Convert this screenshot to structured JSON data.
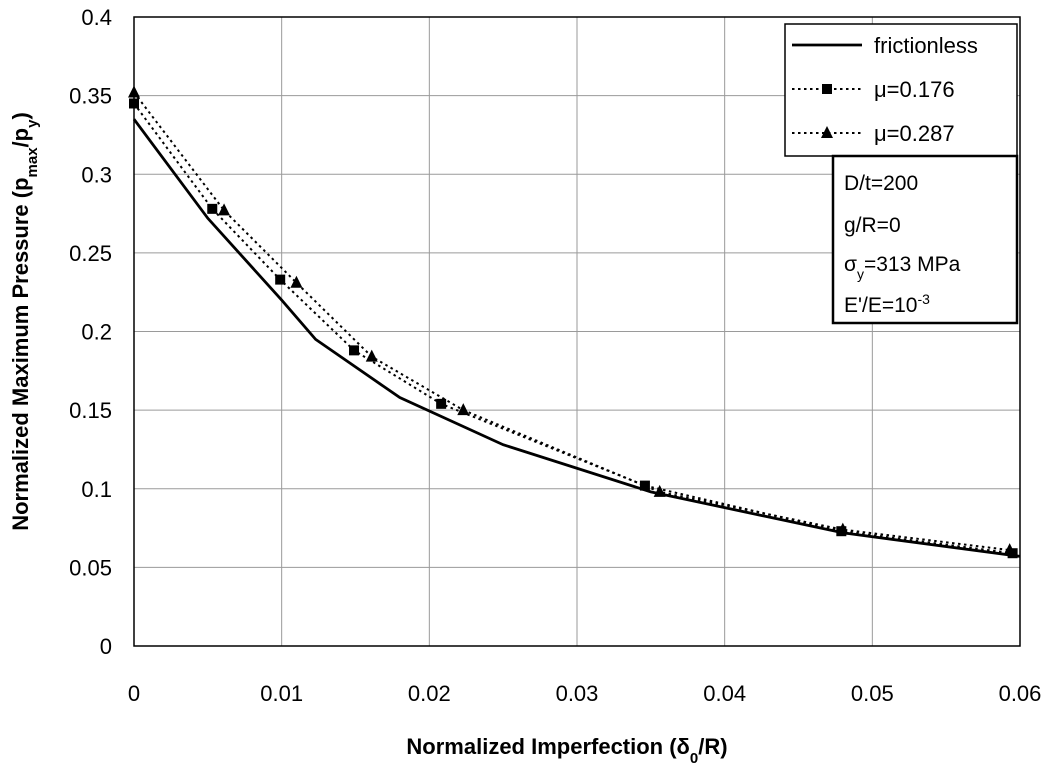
{
  "chart_data": {
    "type": "line",
    "xlabel": "Normalized Imperfection (δ0/R)",
    "ylabel": "Normalized Maximum Pressure (pmax/py)",
    "xlim": [
      0,
      0.06
    ],
    "ylim": [
      0,
      0.4
    ],
    "xticks": [
      "0",
      "0.01",
      "0.02",
      "0.03",
      "0.04",
      "0.05",
      "0.06"
    ],
    "yticks": [
      "0",
      "0.05",
      "0.1",
      "0.15",
      "0.2",
      "0.25",
      "0.3",
      "0.35",
      "0.4"
    ],
    "grid": true,
    "legend_position": "top-right",
    "series": [
      {
        "name": "frictionless",
        "style": "solid",
        "marker": "none",
        "x": [
          0,
          0.005,
          0.01,
          0.0123,
          0.018,
          0.025,
          0.035,
          0.048,
          0.06
        ],
        "y": [
          0.335,
          0.272,
          0.22,
          0.195,
          0.158,
          0.128,
          0.098,
          0.072,
          0.057
        ]
      },
      {
        "name": "μ=0.176",
        "style": "dotted",
        "marker": "square",
        "x": [
          0,
          0.0053,
          0.0099,
          0.0149,
          0.0208,
          0.0346,
          0.0479,
          0.0595
        ],
        "y": [
          0.345,
          0.278,
          0.233,
          0.188,
          0.154,
          0.102,
          0.073,
          0.059
        ]
      },
      {
        "name": "μ=0.287",
        "style": "dotted",
        "marker": "triangle",
        "x": [
          0,
          0.0061,
          0.011,
          0.0161,
          0.0223,
          0.0356,
          0.048,
          0.0593
        ],
        "y": [
          0.352,
          0.277,
          0.231,
          0.184,
          0.15,
          0.098,
          0.074,
          0.061
        ]
      }
    ],
    "annotation": {
      "lines": [
        {
          "base": "D/t=200",
          "sub": "",
          "sup": "",
          "tail": ""
        },
        {
          "base": "g/R=0",
          "sub": "",
          "sup": "",
          "tail": ""
        },
        {
          "base": "σ",
          "sub": "y",
          "sup": "",
          "tail": "=313 MPa"
        },
        {
          "base": "E'/E=10",
          "sub": "",
          "sup": "-3",
          "tail": ""
        }
      ]
    }
  }
}
